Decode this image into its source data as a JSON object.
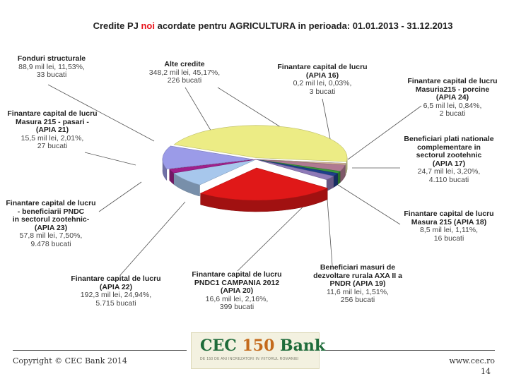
{
  "title": {
    "before": "Credite PJ ",
    "highlight": "noi",
    "after": " acordate pentru AGRICULTURA in perioada: 01.01.2013 - 31.12.2013"
  },
  "chart_data": {
    "type": "pie",
    "title": "Credite PJ noi acordate pentru AGRICULTURA in perioada: 01.01.2013 - 31.12.2013",
    "slices": [
      {
        "name": "Alte credite",
        "value": 348.2,
        "pct": "45,17%",
        "lines": [
          "348,2 mil lei, 45,17%,",
          "226 bucati"
        ],
        "color": "#ecec85"
      },
      {
        "name": "Finantare capital de lucru (APIA 16)",
        "value": 0.2,
        "pct": "0,03%",
        "lines": [
          "0,2 mil lei, 0,03%,",
          "3 bucati"
        ],
        "color": "#8db4d6"
      },
      {
        "name": "Finantare capital de lucru Masuria215 - porcine (APIA 24)",
        "value": 6.5,
        "pct": "0,84%",
        "lines": [
          "6,5 mil lei, 0,84%,",
          "2 bucati"
        ],
        "color": "#d8b89a"
      },
      {
        "name": "Beneficiari plati nationale complementare in sectorul zootehnic (APIA 17)",
        "value": 24.7,
        "pct": "3,20%",
        "lines": [
          "24,7 mil lei, 3,20%,",
          "4.110 bucati"
        ],
        "color": "#b07a92"
      },
      {
        "name": "Finantare capital de lucru Masura 215 (APIA 18)",
        "value": 8.5,
        "pct": "1,11%",
        "lines": [
          "8,5 mil lei, 1,11%,",
          "16 bucati"
        ],
        "color": "#3c9a3c"
      },
      {
        "name": "Beneficiari masuri de dezvoltare rurala AXA II a PNDR (APIA 19)",
        "value": 11.6,
        "pct": "1,51%",
        "lines": [
          "11,6 mil lei, 1,51%,",
          "256 bucati"
        ],
        "color": "#1e3f8a"
      },
      {
        "name": "Finantare capital de lucru PNDC1 CAMPANIA 2012 (APIA 20)",
        "value": 16.6,
        "pct": "2,16%",
        "lines": [
          "16,6 mil lei, 2,16%,",
          "399 bucati"
        ],
        "color": "#8e7ab8"
      },
      {
        "name": "Finantare capital de lucru (APIA 22)",
        "value": 192.3,
        "pct": "24,94%",
        "lines": [
          "192,3 mil lei, 24,94%,",
          "5.715 bucati"
        ],
        "color": "#e01818"
      },
      {
        "name": "Finantare capital de lucru - beneficiarii PNDC in sectorul zootehnic- (APIA 23)",
        "value": 57.8,
        "pct": "7,50%",
        "lines": [
          "57,8 mil lei, 7,50%,",
          "9.478 bucati"
        ],
        "color": "#a7c7ec"
      },
      {
        "name": "Finantare capital de lucru Masura 215 - pasari - (APIA 21)",
        "value": 15.5,
        "pct": "2,01%",
        "lines": [
          "15,5 mil lei, 2,01%,",
          "27 bucati"
        ],
        "color": "#a0208c"
      },
      {
        "name": "Fonduri structurale",
        "value": 88.9,
        "pct": "11,53%",
        "lines": [
          "88,9 mil lei, 11,53%,",
          "33 bucati"
        ],
        "color": "#9b9be8"
      }
    ]
  },
  "labels": {
    "alte": {
      "name": "Alte credite",
      "l1": "348,2 mil lei, 45,17%,",
      "l2": "226 bucati"
    },
    "apia16": {
      "name1": "Finantare capital de lucru",
      "name2": "(APIA 16)",
      "l1": "0,2 mil lei, 0,03%,",
      "l2": "3 bucati"
    },
    "apia24": {
      "name1": "Finantare capital de lucru",
      "name2": "Masuria215 - porcine",
      "name3": "(APIA 24)",
      "l1": "6,5 mil lei, 0,84%,",
      "l2": "2 bucati"
    },
    "apia17": {
      "name1": "Beneficiari plati nationale",
      "name2": "complementare in",
      "name3": "sectorul zootehnic",
      "name4": "(APIA 17)",
      "l1": "24,7 mil lei, 3,20%,",
      "l2": "4.110 bucati"
    },
    "apia18": {
      "name1": "Finantare capital de lucru",
      "name2": "Masura 215 (APIA 18)",
      "l1": "8,5 mil lei, 1,11%,",
      "l2": "16 bucati"
    },
    "apia19": {
      "name1": "Beneficiari masuri de",
      "name2": "dezvoltare rurala AXA II a",
      "name3": "PNDR (APIA 19)",
      "l1": "11,6 mil lei, 1,51%,",
      "l2": "256 bucati"
    },
    "apia20": {
      "name1": "Finantare capital de lucru",
      "name2": "PNDC1 CAMPANIA 2012",
      "name3": "(APIA 20)",
      "l1": "16,6 mil lei, 2,16%,",
      "l2": "399 bucati"
    },
    "apia22": {
      "name1": "Finantare capital de lucru",
      "name2": "(APIA 22)",
      "l1": "192,3 mil lei, 24,94%,",
      "l2": "5.715 bucati"
    },
    "apia23": {
      "name1": "Finantare capital de lucru",
      "name2": "- beneficiarii PNDC",
      "name3": "in sectorul zootehnic-",
      "name4": "(APIA 23)",
      "l1": "57,8 mil lei, 7,50%,",
      "l2": "9.478 bucati"
    },
    "apia21": {
      "name1": "Finantare capital de lucru",
      "name2": "Masura 215 - pasari -",
      "name3": "(APIA 21)",
      "l1": "15,5 mil lei, 2,01%,",
      "l2": "27 bucati"
    },
    "fonduri": {
      "name": "Fonduri structurale",
      "l1": "88,9 mil lei, 11,53%,",
      "l2": "33 bucati"
    }
  },
  "footer": {
    "copyright": "Copyright © CEC Bank 2014",
    "logo_main": "CEC ",
    "logo_num": "150",
    "logo_bank": " Bank",
    "logo_tagline": "DE 150 DE ANI INCREZATORI IN VIITORUL ROMANIEI",
    "site": "www.cec.ro",
    "page": "14"
  }
}
